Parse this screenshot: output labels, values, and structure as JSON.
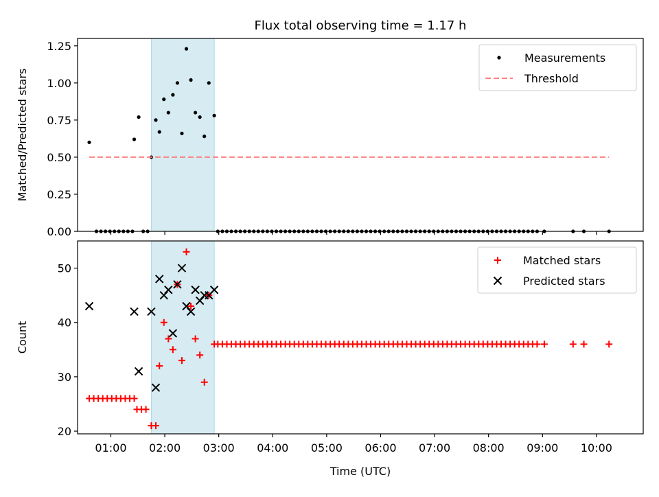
{
  "title": "Flux total observing time = 1.17 h",
  "chart_data": [
    {
      "type": "scatter",
      "ylabel": "Matched/Predicted stars",
      "ylim": [
        0,
        1.3
      ],
      "yticks": [
        0,
        0.25,
        0.5,
        0.75,
        1.0,
        1.25
      ],
      "ytick_labels": [
        "0.00",
        "0.25",
        "0.50",
        "0.75",
        "1.00",
        "1.25"
      ],
      "xlim": [
        "00:23",
        "10:52"
      ],
      "grid": false,
      "legend_position": "top-right",
      "shaded_interval": [
        "01:45",
        "02:55"
      ],
      "shaded_color": "#add8e6",
      "series": [
        {
          "name": "Measurements",
          "kind": "points",
          "color": "#000000",
          "x": [
            "00:36",
            "00:44",
            "00:49",
            "00:54",
            "00:59",
            "01:04",
            "01:09",
            "01:14",
            "01:19",
            "01:24",
            "01:26",
            "01:31",
            "01:36",
            "01:41",
            "01:45",
            "01:50",
            "01:54",
            "01:59",
            "02:04",
            "02:09",
            "02:14",
            "02:19",
            "02:24",
            "02:29",
            "02:34",
            "02:39",
            "02:44",
            "02:49",
            "02:55",
            "02:59",
            "03:04",
            "03:09",
            "03:14",
            "03:19",
            "03:24",
            "03:29",
            "03:34",
            "03:39",
            "03:44",
            "03:49",
            "03:54",
            "03:59",
            "04:04",
            "04:09",
            "04:14",
            "04:19",
            "04:24",
            "04:29",
            "04:34",
            "04:39",
            "04:44",
            "04:49",
            "04:54",
            "04:59",
            "05:04",
            "05:09",
            "05:14",
            "05:19",
            "05:24",
            "05:29",
            "05:34",
            "05:39",
            "05:44",
            "05:49",
            "05:54",
            "05:59",
            "06:04",
            "06:09",
            "06:14",
            "06:19",
            "06:24",
            "06:29",
            "06:34",
            "06:39",
            "06:44",
            "06:49",
            "06:54",
            "06:59",
            "07:04",
            "07:09",
            "07:14",
            "07:19",
            "07:24",
            "07:29",
            "07:34",
            "07:39",
            "07:44",
            "07:49",
            "07:54",
            "07:59",
            "08:04",
            "08:09",
            "08:14",
            "08:19",
            "08:24",
            "08:29",
            "08:34",
            "08:39",
            "08:44",
            "08:49",
            "08:54",
            "09:02",
            "09:34",
            "09:46",
            "10:14"
          ],
          "y": [
            0.6,
            0,
            0,
            0,
            0,
            0,
            0,
            0,
            0,
            0,
            0.62,
            0.77,
            0,
            0,
            0.5,
            0.75,
            0.67,
            0.89,
            0.8,
            0.92,
            1.0,
            0.66,
            1.23,
            1.02,
            0.8,
            0.77,
            0.64,
            1.0,
            0.78,
            0,
            0,
            0,
            0,
            0,
            0,
            0,
            0,
            0,
            0,
            0,
            0,
            0,
            0,
            0,
            0,
            0,
            0,
            0,
            0,
            0,
            0,
            0,
            0,
            0,
            0,
            0,
            0,
            0,
            0,
            0,
            0,
            0,
            0,
            0,
            0,
            0,
            0,
            0,
            0,
            0,
            0,
            0,
            0,
            0,
            0,
            0,
            0,
            0,
            0,
            0,
            0,
            0,
            0,
            0,
            0,
            0,
            0,
            0,
            0,
            0,
            0,
            0,
            0,
            0,
            0,
            0,
            0,
            0,
            0,
            0,
            0,
            0,
            0,
            0,
            0
          ]
        },
        {
          "name": "Threshold",
          "kind": "line",
          "color": "#ff7f7f",
          "x": [
            "00:36",
            "10:14"
          ],
          "y": [
            0.5,
            0.5
          ]
        }
      ]
    },
    {
      "type": "scatter",
      "ylabel": "Count",
      "xlabel": "Time (UTC)",
      "ylim": [
        19.5,
        55
      ],
      "yticks": [
        20,
        30,
        40,
        50
      ],
      "ytick_labels": [
        "20",
        "30",
        "40",
        "50"
      ],
      "xticks": [
        "01:00",
        "02:00",
        "03:00",
        "04:00",
        "05:00",
        "06:00",
        "07:00",
        "08:00",
        "09:00",
        "10:00"
      ],
      "xlim": [
        "00:23",
        "10:52"
      ],
      "grid": false,
      "legend_position": "top-right",
      "shaded_interval": [
        "01:45",
        "02:55"
      ],
      "shaded_color": "#add8e6",
      "series": [
        {
          "name": "Matched stars",
          "marker": "plus",
          "color": "#ff0000",
          "x": [
            "00:36",
            "00:41",
            "00:46",
            "00:51",
            "00:56",
            "01:01",
            "01:06",
            "01:11",
            "01:16",
            "01:21",
            "01:26",
            "01:29",
            "01:34",
            "01:39",
            "01:45",
            "01:50",
            "01:54",
            "01:59",
            "02:04",
            "02:09",
            "02:14",
            "02:19",
            "02:24",
            "02:29",
            "02:34",
            "02:39",
            "02:44",
            "02:49",
            "02:55",
            "02:59",
            "03:04",
            "03:09",
            "03:14",
            "03:19",
            "03:24",
            "03:29",
            "03:34",
            "03:39",
            "03:44",
            "03:49",
            "03:54",
            "03:59",
            "04:04",
            "04:09",
            "04:14",
            "04:19",
            "04:24",
            "04:29",
            "04:34",
            "04:39",
            "04:44",
            "04:49",
            "04:54",
            "04:59",
            "05:04",
            "05:09",
            "05:14",
            "05:19",
            "05:24",
            "05:29",
            "05:34",
            "05:39",
            "05:44",
            "05:49",
            "05:54",
            "05:59",
            "06:04",
            "06:09",
            "06:14",
            "06:19",
            "06:24",
            "06:29",
            "06:34",
            "06:39",
            "06:44",
            "06:49",
            "06:54",
            "06:59",
            "07:04",
            "07:09",
            "07:14",
            "07:19",
            "07:24",
            "07:29",
            "07:34",
            "07:39",
            "07:44",
            "07:49",
            "07:54",
            "07:59",
            "08:04",
            "08:09",
            "08:14",
            "08:19",
            "08:24",
            "08:29",
            "08:34",
            "08:39",
            "08:44",
            "08:49",
            "08:54",
            "09:02",
            "09:34",
            "09:46",
            "10:14"
          ],
          "y": [
            26,
            26,
            26,
            26,
            26,
            26,
            26,
            26,
            26,
            26,
            26,
            24,
            24,
            24,
            21,
            21,
            32,
            40,
            37,
            35,
            47,
            33,
            53,
            43,
            37,
            34,
            29,
            45,
            36,
            36,
            36,
            36,
            36,
            36,
            36,
            36,
            36,
            36,
            36,
            36,
            36,
            36,
            36,
            36,
            36,
            36,
            36,
            36,
            36,
            36,
            36,
            36,
            36,
            36,
            36,
            36,
            36,
            36,
            36,
            36,
            36,
            36,
            36,
            36,
            36,
            36,
            36,
            36,
            36,
            36,
            36,
            36,
            36,
            36,
            36,
            36,
            36,
            36,
            36,
            36,
            36,
            36,
            36,
            36,
            36,
            36,
            36,
            36,
            36,
            36,
            36,
            36,
            36,
            36,
            36,
            36,
            36,
            36,
            36,
            36,
            36,
            36,
            36,
            36,
            36
          ]
        },
        {
          "name": "Predicted stars",
          "marker": "x",
          "color": "#000000",
          "x": [
            "00:36",
            "01:26",
            "01:31",
            "01:45",
            "01:50",
            "01:54",
            "01:59",
            "02:04",
            "02:09",
            "02:14",
            "02:19",
            "02:24",
            "02:29",
            "02:34",
            "02:39",
            "02:44",
            "02:49",
            "02:55"
          ],
          "y": [
            43,
            42,
            31,
            42,
            28,
            48,
            45,
            46,
            38,
            47,
            50,
            43,
            42,
            46,
            44,
            45,
            45,
            46
          ]
        }
      ]
    }
  ]
}
